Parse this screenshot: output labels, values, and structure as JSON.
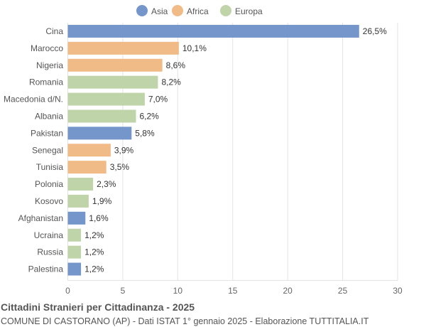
{
  "chart_data": {
    "type": "bar",
    "orientation": "horizontal",
    "title": "Cittadini Stranieri per Cittadinanza - 2025",
    "subtitle": "COMUNE DI CASTORANO (AP) - Dati ISTAT 1° gennaio 2025 - Elaborazione TUTTITALIA.IT",
    "legend": [
      {
        "name": "Asia",
        "color": "#7596cb"
      },
      {
        "name": "Africa",
        "color": "#f1bb87"
      },
      {
        "name": "Europa",
        "color": "#c0d4a9"
      }
    ],
    "legend_position": "top",
    "categories": [
      "Cina",
      "Marocco",
      "Nigeria",
      "Romania",
      "Macedonia d/N.",
      "Albania",
      "Pakistan",
      "Senegal",
      "Tunisia",
      "Polonia",
      "Kosovo",
      "Afghanistan",
      "Ucraina",
      "Russia",
      "Palestina"
    ],
    "values": [
      26.5,
      10.1,
      8.6,
      8.2,
      7.0,
      6.2,
      5.8,
      3.9,
      3.5,
      2.3,
      1.9,
      1.6,
      1.2,
      1.2,
      1.2
    ],
    "labels": [
      "26,5%",
      "10,1%",
      "8,6%",
      "8,2%",
      "7,0%",
      "6,2%",
      "5,8%",
      "3,9%",
      "3,5%",
      "2,3%",
      "1,9%",
      "1,6%",
      "1,2%",
      "1,2%",
      "1,2%"
    ],
    "groups": [
      "Asia",
      "Africa",
      "Africa",
      "Europa",
      "Europa",
      "Europa",
      "Asia",
      "Africa",
      "Africa",
      "Europa",
      "Europa",
      "Asia",
      "Europa",
      "Europa",
      "Asia"
    ],
    "xlim": [
      0,
      30
    ],
    "xticks": [
      0,
      5,
      10,
      15,
      20,
      25,
      30
    ],
    "grid": true
  }
}
